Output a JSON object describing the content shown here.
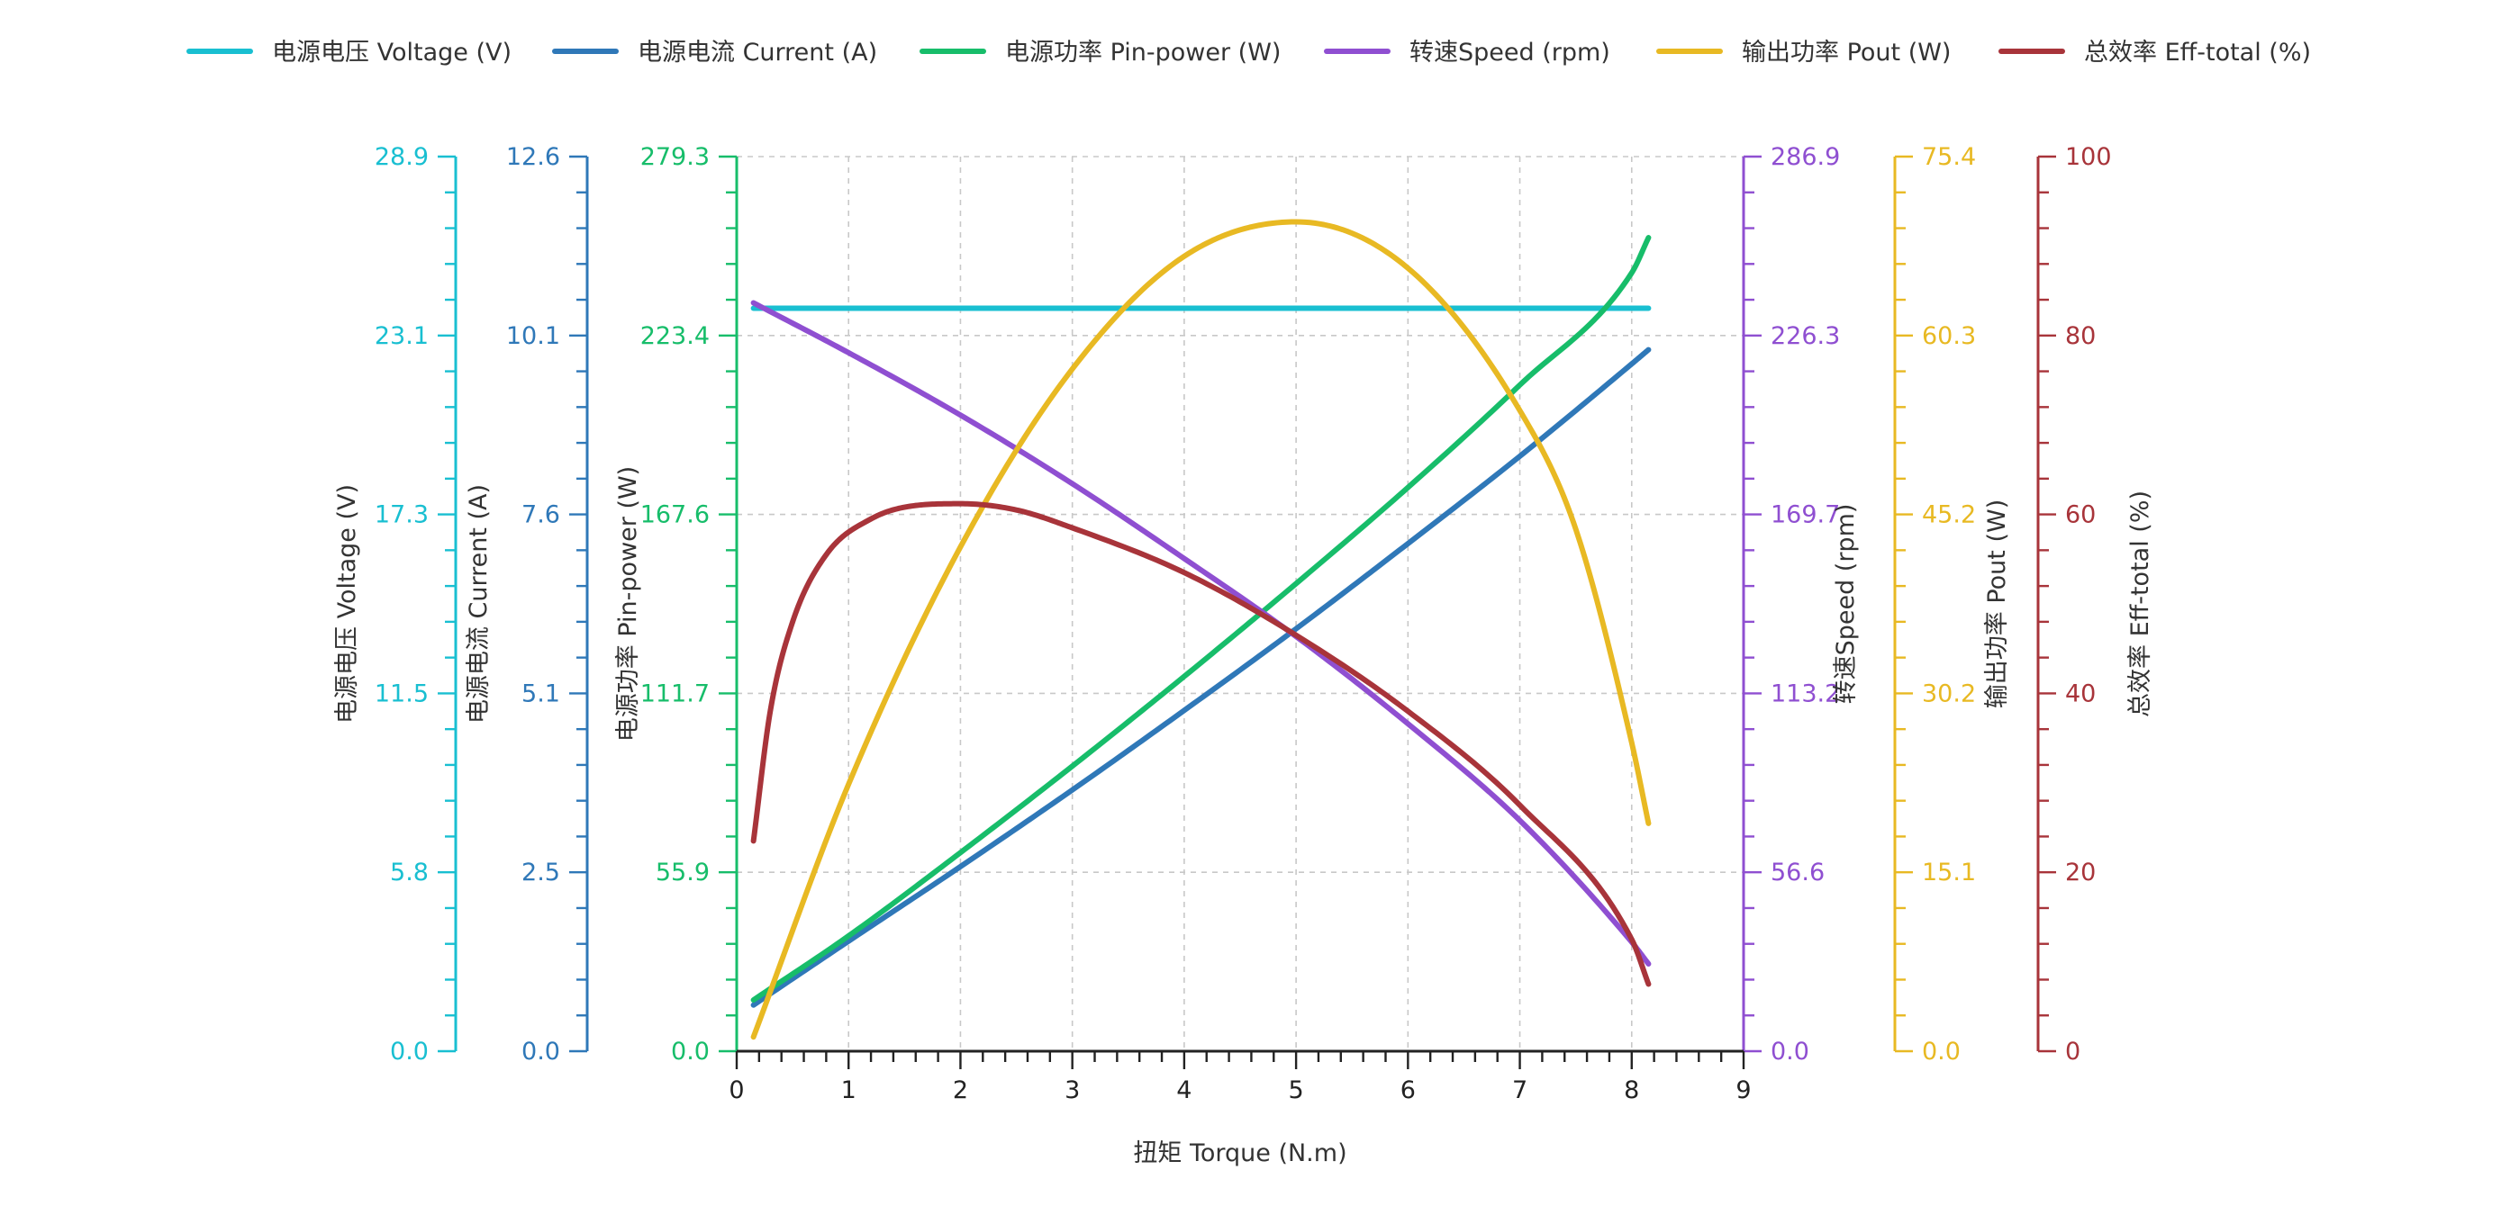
{
  "chart_data": {
    "type": "line",
    "x_axis": {
      "label": "扭矩 Torque (N.m)",
      "min": 0,
      "max": 9,
      "ticks": [
        "0",
        "1",
        "2",
        "3",
        "4",
        "5",
        "6",
        "7",
        "8",
        "9"
      ]
    },
    "axes": [
      {
        "id": "voltage",
        "label": "电源电压 Voltage (V)",
        "side": "left",
        "color": "#19bfd1",
        "min": 0,
        "max": 28.9,
        "ticks": [
          "0.0",
          "5.8",
          "11.5",
          "17.3",
          "23.1",
          "28.9"
        ]
      },
      {
        "id": "current",
        "label": "电源电流 Current (A)",
        "side": "left",
        "color": "#2f78b8",
        "min": 0,
        "max": 12.6,
        "ticks": [
          "0.0",
          "2.5",
          "5.1",
          "7.6",
          "10.1",
          "12.6"
        ]
      },
      {
        "id": "pin",
        "label": "电源功率 Pin-power (W)",
        "side": "left",
        "color": "#17bd6a",
        "min": 0,
        "max": 279.3,
        "ticks": [
          "0.0",
          "55.9",
          "111.7",
          "167.6",
          "223.4",
          "279.3"
        ]
      },
      {
        "id": "speed",
        "label": "转速Speed (rpm)",
        "side": "right",
        "color": "#8f4fd1",
        "min": 0,
        "max": 286.9,
        "ticks": [
          "0.0",
          "56.6",
          "113.2",
          "169.7",
          "226.3",
          "286.9"
        ]
      },
      {
        "id": "pout",
        "label": "输出功率 Pout (W)",
        "side": "right",
        "color": "#e8b923",
        "min": 0,
        "max": 75.4,
        "ticks": [
          "0.0",
          "15.1",
          "30.2",
          "45.2",
          "60.3",
          "75.4"
        ]
      },
      {
        "id": "eff",
        "label": "总效率 Eff-total (%)",
        "side": "right",
        "color": "#a8343a",
        "min": 0,
        "max": 100,
        "ticks": [
          "0",
          "20",
          "40",
          "60",
          "80",
          "100"
        ]
      }
    ],
    "series": [
      {
        "name": "电源电压 Voltage (V)",
        "axis": "voltage",
        "color": "#19bfd1",
        "x": [
          0.15,
          8.15
        ],
        "y": [
          24.0,
          24.0
        ]
      },
      {
        "name": "电源电流 Current (A)",
        "axis": "current",
        "color": "#2f78b8",
        "x": [
          0.15,
          1,
          2,
          3,
          4,
          5,
          6,
          7,
          8,
          8.15
        ],
        "y": [
          0.65,
          1.55,
          2.6,
          3.68,
          4.8,
          5.95,
          7.15,
          8.38,
          9.68,
          9.88
        ]
      },
      {
        "name": "电源功率 Pin-power (W)",
        "axis": "pin",
        "color": "#17bd6a",
        "x": [
          0.15,
          1,
          2,
          3,
          4,
          5,
          6,
          7,
          8,
          8.15
        ],
        "y": [
          16,
          36,
          62,
          89,
          117,
          146,
          176,
          208,
          243,
          254
        ]
      },
      {
        "name": "转速Speed (rpm)",
        "axis": "speed",
        "color": "#8f4fd1",
        "x": [
          0.15,
          1,
          2,
          3,
          4,
          5,
          6,
          7,
          8,
          8.15
        ],
        "y": [
          240,
          224,
          204,
          182,
          158,
          133,
          105,
          74,
          35,
          28
        ]
      },
      {
        "name": "输出功率 Pout (W)",
        "axis": "pout",
        "color": "#e8b923",
        "x": [
          0.15,
          1,
          2,
          3,
          4,
          5,
          6,
          7,
          7.5,
          8,
          8.15
        ],
        "y": [
          1.2,
          22.5,
          42.5,
          57.5,
          67,
          69.9,
          66,
          54,
          44,
          26,
          19.2
        ]
      },
      {
        "name": "总效率 Eff-total (%)",
        "axis": "eff",
        "color": "#a8343a",
        "x": [
          0.15,
          0.3,
          0.5,
          0.8,
          1.2,
          1.6,
          2,
          2.5,
          3,
          4,
          5,
          6,
          7,
          8,
          8.15
        ],
        "y": [
          23.5,
          38,
          48,
          55.5,
          59.5,
          61,
          61.2,
          60.5,
          58.5,
          53.5,
          46.5,
          38,
          27.5,
          12.5,
          7.5
        ]
      }
    ]
  }
}
